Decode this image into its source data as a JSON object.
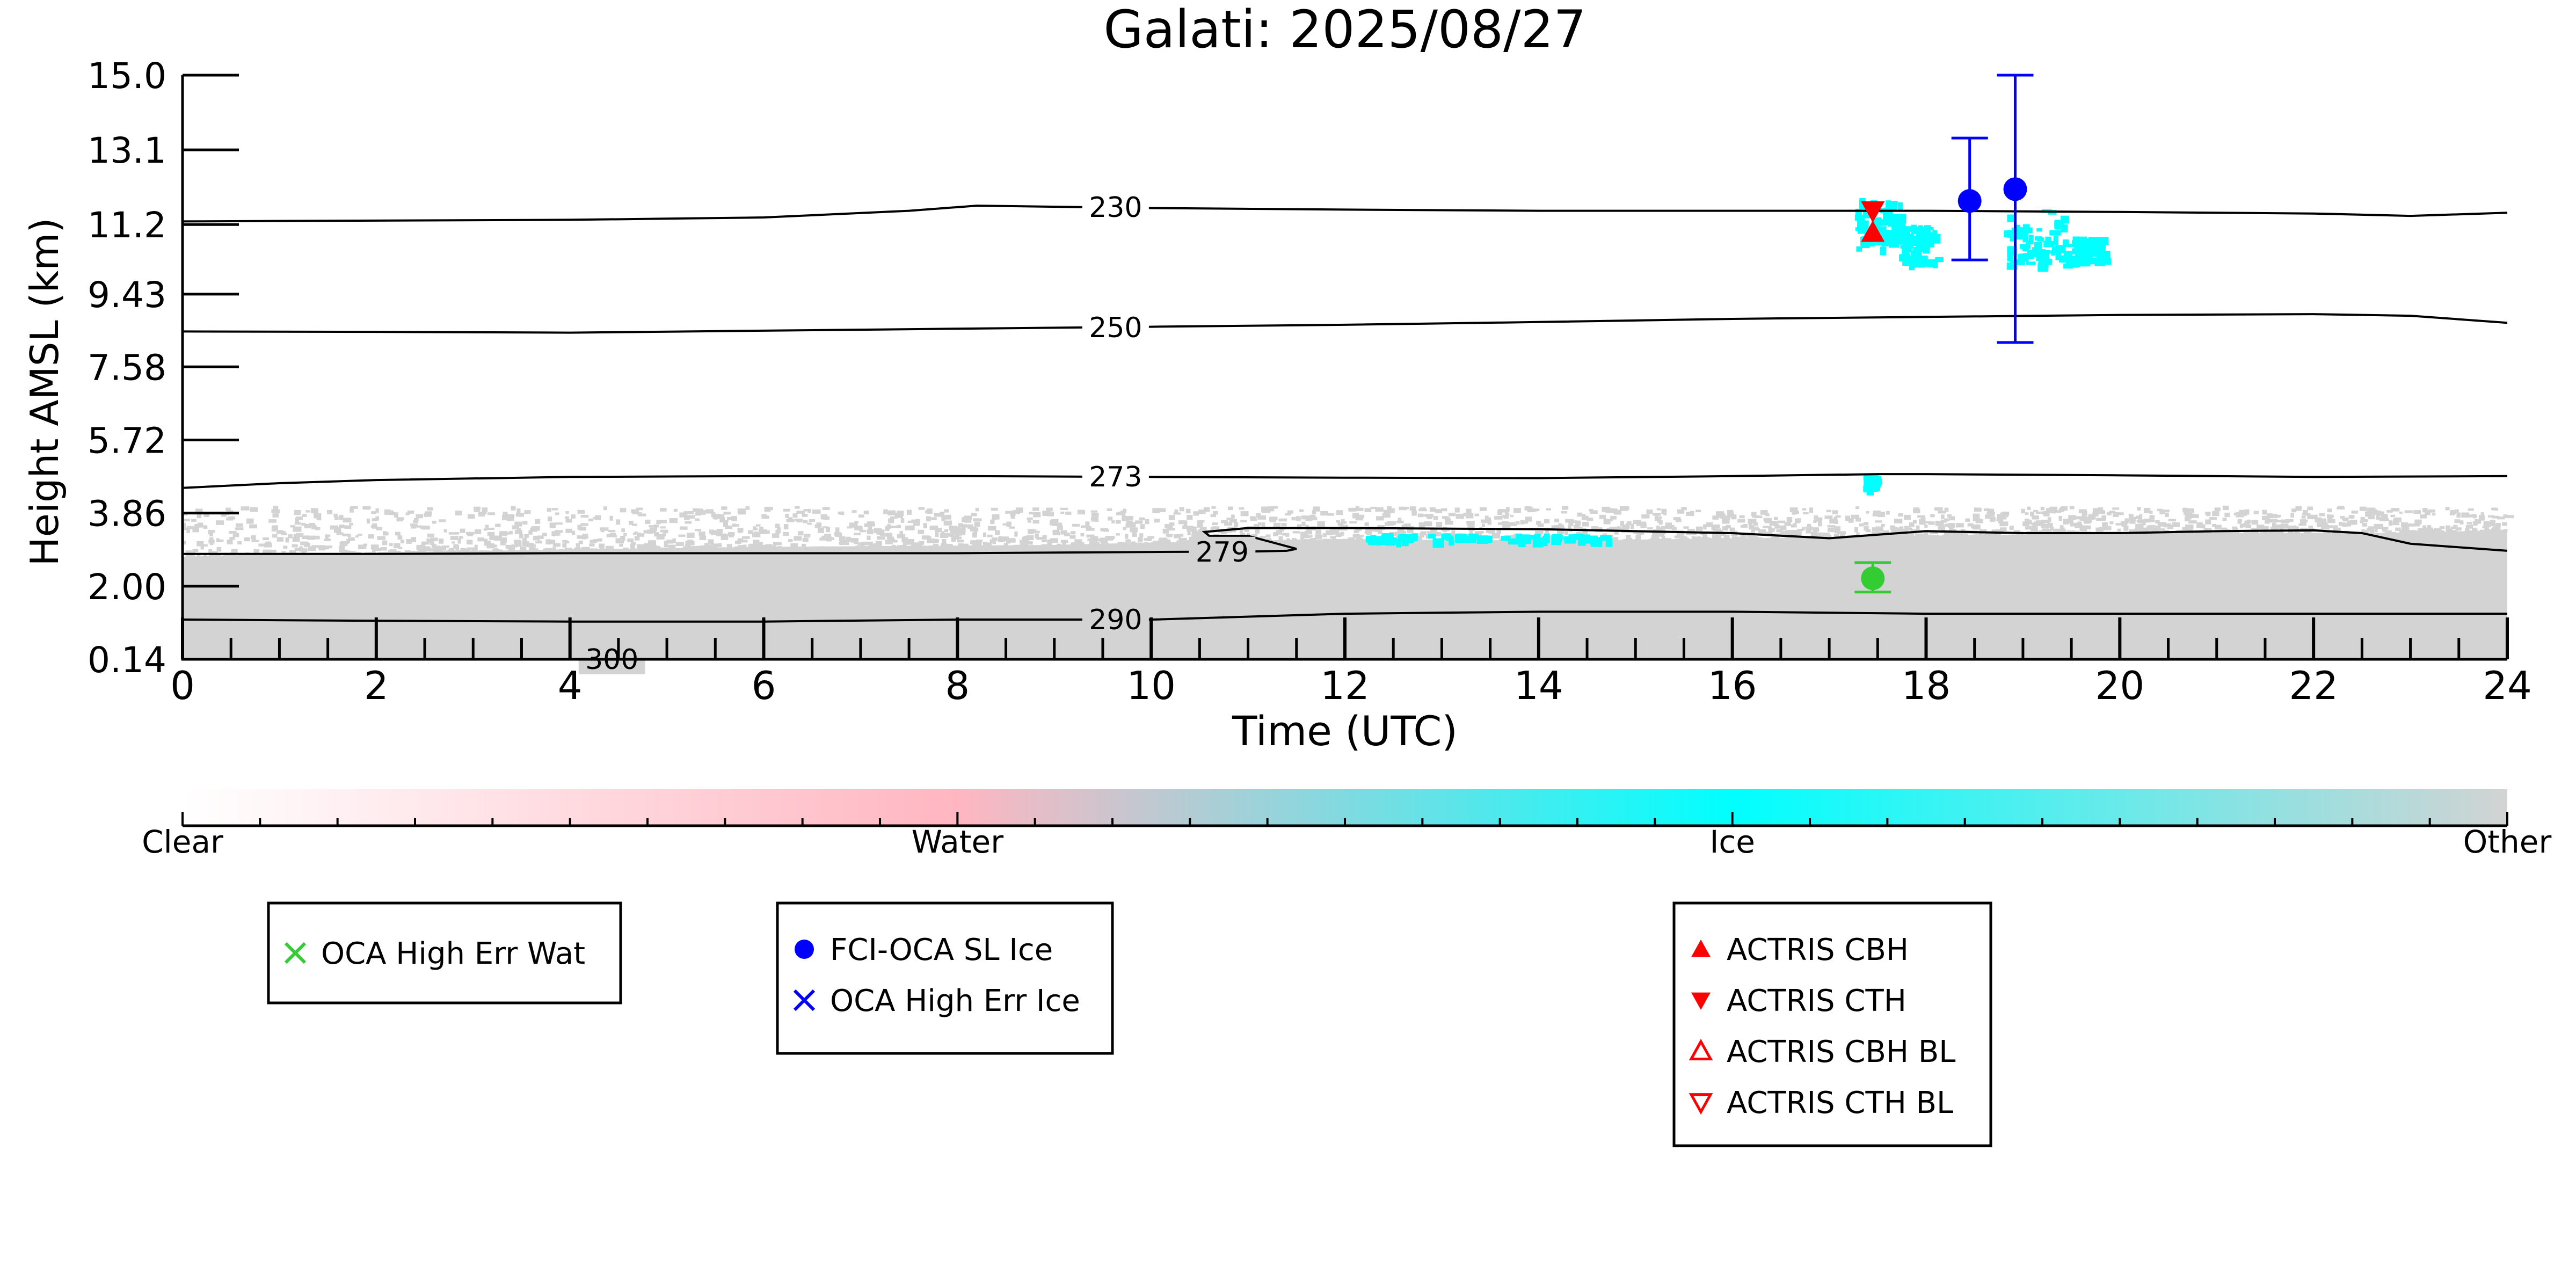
{
  "chart_data": {
    "type": "scatter",
    "title": "Galati: 2025/08/27",
    "xlabel": "Time (UTC)",
    "ylabel": "Height AMSL (km)",
    "xlim": [
      0,
      24
    ],
    "ylim": [
      0.14,
      15.0
    ],
    "x_ticks": [
      "0",
      "2",
      "4",
      "6",
      "8",
      "10",
      "12",
      "14",
      "16",
      "18",
      "20",
      "22",
      "24"
    ],
    "y_ticks": [
      "0.14",
      "2.00",
      "3.86",
      "5.72",
      "7.58",
      "9.43",
      "11.2",
      "13.1",
      "15.0"
    ],
    "y_tick_values": [
      0.14,
      2.0,
      3.86,
      5.72,
      7.58,
      9.43,
      11.2,
      13.1,
      15.0
    ],
    "grid": false,
    "classification_colors": {
      "clear": "#ffffff",
      "water": "#ffb6c1",
      "ice": "#00ffff",
      "other": "#d3d3d3"
    },
    "colorbar": {
      "labels": [
        "Clear",
        "Water",
        "Ice",
        "Other"
      ],
      "stops": [
        "#ffffff",
        "#ffb6c1",
        "#00ffff",
        "#d3d3d3"
      ]
    },
    "other_layer": {
      "top_km": [
        [
          0,
          2.75
        ],
        [
          3,
          2.9
        ],
        [
          6,
          3.0
        ],
        [
          9,
          3.05
        ],
        [
          10.7,
          3.15
        ],
        [
          12,
          3.2
        ],
        [
          14,
          3.15
        ],
        [
          17,
          3.25
        ],
        [
          20,
          3.35
        ],
        [
          22.5,
          3.35
        ],
        [
          24,
          3.4
        ]
      ],
      "speckle_top_km": 4.05
    },
    "ice_patches": [
      {
        "x": [
          17.25,
          17.75
        ],
        "y": [
          10.6,
          11.9
        ]
      },
      {
        "x": [
          17.7,
          18.1
        ],
        "y": [
          10.2,
          11.2
        ]
      },
      {
        "x": [
          18.8,
          19.45
        ],
        "y": [
          10.2,
          11.6
        ]
      },
      {
        "x": [
          19.5,
          19.8
        ],
        "y": [
          10.3,
          10.9
        ]
      },
      {
        "x": [
          12.2,
          14.7
        ],
        "y": [
          3.2,
          3.35
        ]
      },
      {
        "x": [
          17.35,
          17.45
        ],
        "y": [
          4.55,
          4.85
        ]
      }
    ],
    "isotherms": [
      {
        "label": "230",
        "label_x": 9.3,
        "x": [
          0,
          2,
          4,
          6,
          7.5,
          8.2,
          10,
          12,
          14,
          16,
          18,
          20,
          22,
          23,
          24
        ],
        "y": [
          11.28,
          11.3,
          11.32,
          11.38,
          11.55,
          11.68,
          11.62,
          11.58,
          11.55,
          11.55,
          11.55,
          11.52,
          11.48,
          11.42,
          11.5
        ]
      },
      {
        "label": "250",
        "label_x": 9.3,
        "x": [
          0,
          2,
          4,
          6,
          8,
          10,
          12,
          14,
          16,
          18,
          20,
          22,
          23,
          24
        ],
        "y": [
          8.48,
          8.47,
          8.45,
          8.5,
          8.55,
          8.6,
          8.65,
          8.72,
          8.8,
          8.85,
          8.9,
          8.92,
          8.88,
          8.7
        ]
      },
      {
        "label": "273",
        "label_x": 9.3,
        "x": [
          0,
          1,
          2,
          4,
          6,
          8,
          10,
          12,
          14,
          16,
          17.5,
          18,
          20,
          22,
          24
        ],
        "y": [
          4.5,
          4.62,
          4.7,
          4.78,
          4.8,
          4.8,
          4.78,
          4.76,
          4.75,
          4.8,
          4.85,
          4.85,
          4.82,
          4.78,
          4.8
        ]
      },
      {
        "label": "279",
        "label_x": 10.4,
        "x": [
          0,
          2,
          4,
          6,
          8,
          10,
          11,
          11.4,
          11.5,
          11,
          10.6,
          10.55,
          11,
          12,
          14,
          16,
          17,
          18,
          19,
          20,
          21,
          22,
          22.5,
          23,
          24
        ],
        "y": [
          2.82,
          2.82,
          2.84,
          2.84,
          2.84,
          2.87,
          2.88,
          2.9,
          2.95,
          3.28,
          3.28,
          3.38,
          3.48,
          3.48,
          3.45,
          3.35,
          3.22,
          3.4,
          3.35,
          3.35,
          3.4,
          3.42,
          3.35,
          3.08,
          2.9
        ]
      },
      {
        "label": "290",
        "label_x": 9.3,
        "x": [
          0,
          2,
          4,
          6,
          8,
          10,
          12,
          14,
          16,
          18,
          20,
          22,
          24
        ],
        "y": [
          1.15,
          1.12,
          1.1,
          1.1,
          1.15,
          1.15,
          1.3,
          1.35,
          1.35,
          1.3,
          1.3,
          1.3,
          1.3
        ]
      },
      {
        "label": "300",
        "label_x": 4.1,
        "x": [
          3.9,
          4.6,
          5.2
        ],
        "y": [
          0.14,
          0.14,
          0.14
        ]
      }
    ],
    "series": [
      {
        "name": "FCI-OCA SL Ice",
        "marker": "circle",
        "color": "#0000ff",
        "points": [
          {
            "x": 18.45,
            "y": 11.8,
            "err_low": 10.3,
            "err_high": 13.4
          },
          {
            "x": 18.92,
            "y": 12.1,
            "err_low": 8.2,
            "err_high": 15.0
          }
        ]
      },
      {
        "name": "OCA High Err Wat",
        "marker": "circle",
        "color": "#33cc33",
        "points": [
          {
            "x": 17.45,
            "y": 2.2,
            "err_low": 1.85,
            "err_high": 2.6
          }
        ]
      },
      {
        "name": "ACTRIS CTH",
        "marker": "triangle-down",
        "color": "#ff0000",
        "points": [
          {
            "x": 17.45,
            "y": 11.55
          }
        ]
      },
      {
        "name": "ACTRIS CBH",
        "marker": "triangle-up",
        "color": "#ff0000",
        "points": [
          {
            "x": 17.45,
            "y": 11.0
          }
        ]
      }
    ]
  },
  "legends": [
    {
      "entries": [
        {
          "label": "OCA High Err Wat",
          "marker": "x",
          "color": "#33cc33"
        }
      ]
    },
    {
      "entries": [
        {
          "label": "FCI-OCA SL Ice",
          "marker": "circle",
          "color": "#0000ff"
        },
        {
          "label": "OCA High Err Ice",
          "marker": "x",
          "color": "#0000ff"
        }
      ]
    },
    {
      "entries": [
        {
          "label": "ACTRIS CBH",
          "marker": "triangle-up",
          "color": "#ff0000"
        },
        {
          "label": "ACTRIS CTH",
          "marker": "triangle-down",
          "color": "#ff0000"
        },
        {
          "label": "ACTRIS CBH BL",
          "marker": "triangle-up-open",
          "color": "#ff0000"
        },
        {
          "label": "ACTRIS CTH BL",
          "marker": "triangle-down-open",
          "color": "#ff0000"
        }
      ]
    }
  ]
}
